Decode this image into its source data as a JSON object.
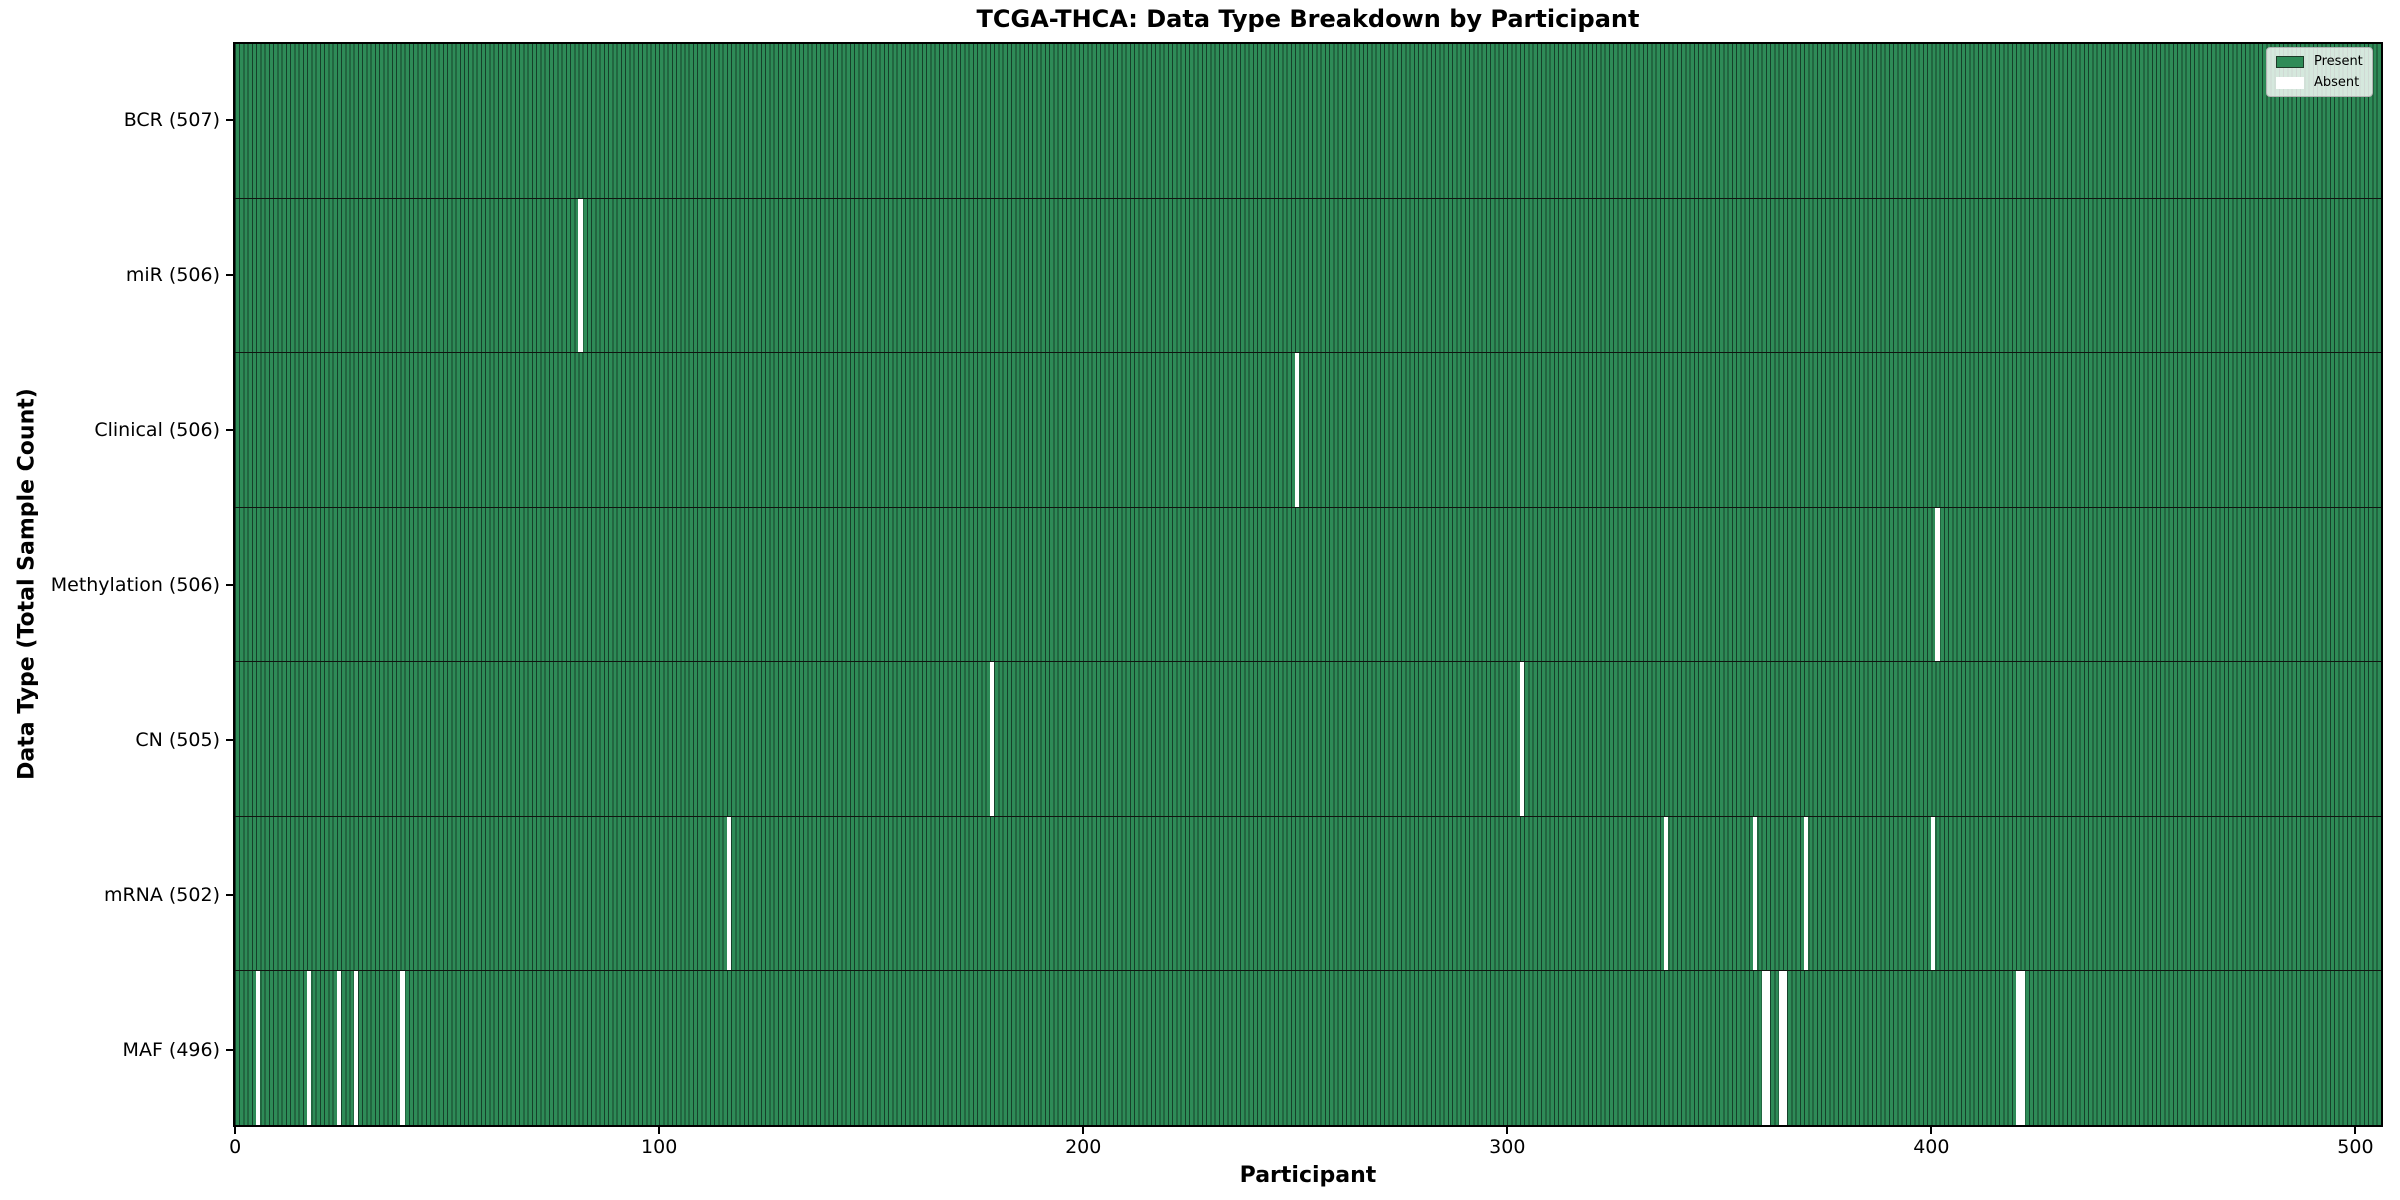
{
  "title": "TCGA-THCA: Data Type Breakdown by Participant",
  "x_axis": {
    "label": "Participant",
    "ticks": [
      "0",
      "100",
      "200",
      "300",
      "400",
      "500"
    ]
  },
  "y_axis": {
    "label": "Data Type (Total Sample Count)"
  },
  "legend": {
    "present_label": "Present",
    "absent_label": "Absent"
  },
  "colors": {
    "present": "#2e8b57",
    "absent": "#ffffff",
    "bar_edge": "#15402a",
    "row_separator": "#101510",
    "axis": "#000000"
  },
  "chart_data": {
    "type": "heatmap",
    "title": "TCGA-THCA: Data Type Breakdown by Participant",
    "xlabel": "Participant",
    "ylabel": "Data Type (Total Sample Count)",
    "legend_entries": [
      "Present",
      "Absent"
    ],
    "legend_position": "upper right",
    "total_participants": 507,
    "x_range": [
      0,
      506
    ],
    "x_ticks": [
      0,
      100,
      200,
      300,
      400,
      500
    ],
    "grid": false,
    "rows": [
      {
        "label": "BCR (507)",
        "data_type": "BCR",
        "present_count": 507,
        "absent_participants": []
      },
      {
        "label": "miR (506)",
        "data_type": "miR",
        "present_count": 506,
        "absent_participants": [
          81
        ]
      },
      {
        "label": "Clinical (506)",
        "data_type": "Clinical",
        "present_count": 506,
        "absent_participants": [
          250
        ]
      },
      {
        "label": "Methylation (506)",
        "data_type": "Methylation",
        "present_count": 506,
        "absent_participants": [
          401
        ]
      },
      {
        "label": "CN (505)",
        "data_type": "CN",
        "present_count": 505,
        "absent_participants": [
          178,
          303
        ]
      },
      {
        "label": "mRNA (502)",
        "data_type": "mRNA",
        "present_count": 502,
        "absent_participants": [
          116,
          337,
          358,
          370,
          400
        ]
      },
      {
        "label": "MAF (496)",
        "data_type": "MAF",
        "present_count": 496,
        "absent_participants": [
          5,
          17,
          24,
          28,
          39,
          360,
          361,
          364,
          365,
          420,
          421
        ]
      }
    ]
  }
}
